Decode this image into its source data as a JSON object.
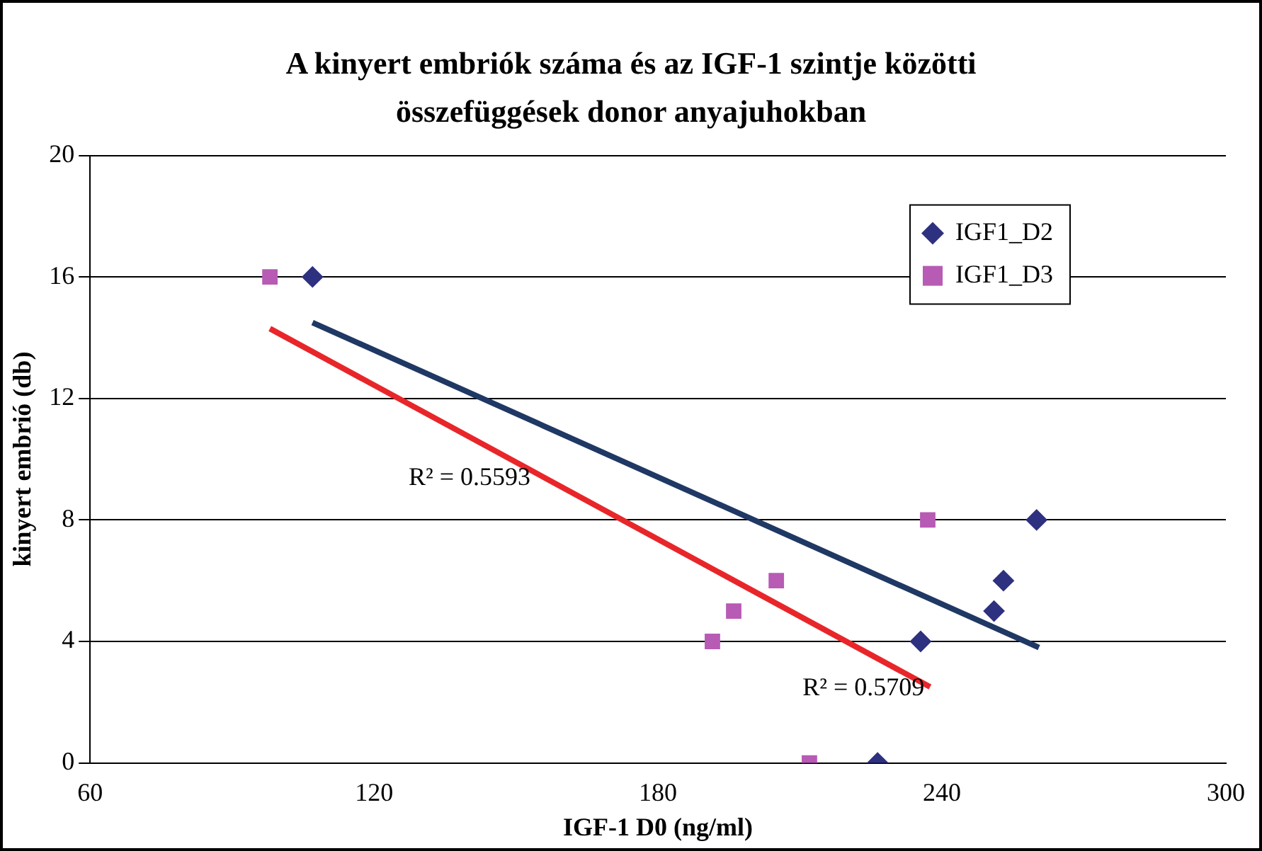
{
  "chart_data": {
    "type": "scatter",
    "title": "A kinyert embriók száma és az IGF-1 szintje közötti összefüggések donor anyajuhokban",
    "xlabel": "IGF-1 D0 (ng/ml)",
    "ylabel": "kinyert embrió (db)",
    "xlim": [
      60,
      300
    ],
    "xticks": [
      60,
      120,
      180,
      240,
      300
    ],
    "ylim": [
      0,
      20
    ],
    "yticks": [
      0,
      4,
      8,
      12,
      16,
      20
    ],
    "grid": "y",
    "legend": "top right",
    "series": [
      {
        "name": "IGF1_D2",
        "color": "#2e3180",
        "marker": "diamond",
        "x": [
          107,
          226.4,
          235.5,
          251,
          253,
          260
        ],
        "values": [
          16,
          0,
          4,
          5,
          6,
          8
        ]
      },
      {
        "name": "IGF1_D3",
        "color": "#b85bb5",
        "marker": "square",
        "x": [
          98,
          191.5,
          196,
          205,
          212,
          237
        ],
        "values": [
          16,
          4,
          5,
          6,
          0,
          8
        ]
      },
      {
        "type": "line",
        "color": "#1f3864",
        "marker": "none",
        "x": [
          107,
          260.5
        ],
        "values": [
          14.5,
          3.8
        ]
      },
      {
        "type": "line",
        "color": "#e8262a",
        "marker": "none",
        "x": [
          98,
          237.5
        ],
        "values": [
          14.3,
          2.5
        ]
      }
    ],
    "annotations": [
      "R² = 0.5593",
      "R² = 0.5709"
    ]
  }
}
